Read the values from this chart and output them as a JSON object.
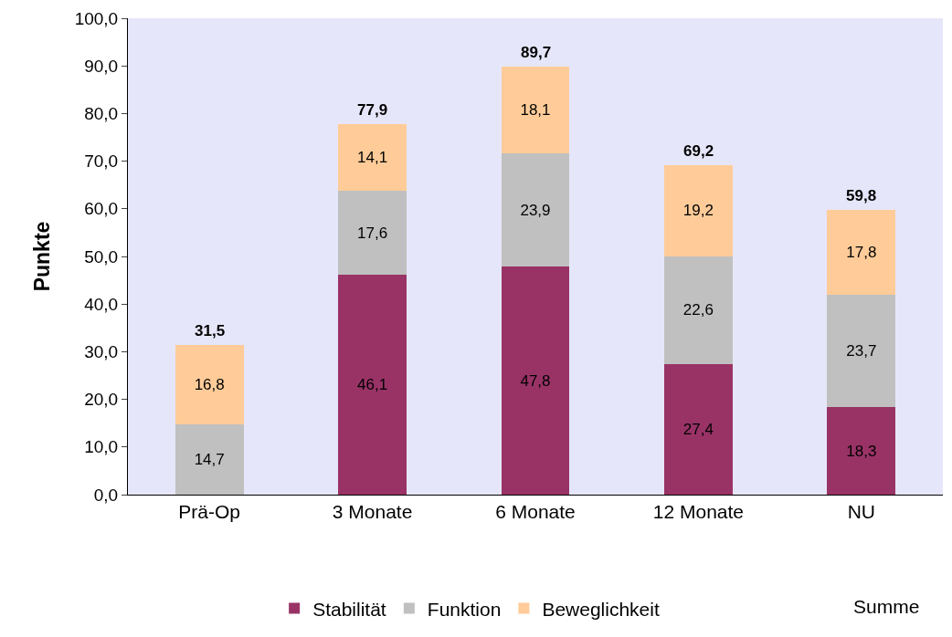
{
  "chart_data": {
    "type": "bar",
    "stacked": true,
    "ylabel": "Punkte",
    "categories": [
      "Prä-Op",
      "3 Monate",
      "6 Monate",
      "12 Monate",
      "NU"
    ],
    "series": [
      {
        "name": "Stabilität",
        "color": "#993366",
        "values": [
          null,
          46.1,
          47.8,
          27.4,
          18.3
        ],
        "value_labels": [
          null,
          "46,1",
          "47,8",
          "27,4",
          "18,3"
        ]
      },
      {
        "name": "Funktion",
        "color": "#c0c0c0",
        "values": [
          14.7,
          17.6,
          23.9,
          22.6,
          23.7
        ],
        "value_labels": [
          "14,7",
          "17,6",
          "23,9",
          "22,6",
          "23,7"
        ]
      },
      {
        "name": "Beweglichkeit",
        "color": "#ffcc99",
        "values": [
          16.8,
          14.1,
          18.1,
          19.2,
          17.8
        ],
        "value_labels": [
          "16,8",
          "14,1",
          "18,1",
          "19,2",
          "17,8"
        ]
      }
    ],
    "totals": [
      "31,5",
      "77,9",
      "89,7",
      "69,2",
      "59,8"
    ],
    "annotations": [
      "Summe"
    ],
    "ylim": [
      0,
      100
    ],
    "yticks": [
      {
        "value": 0,
        "label": "0,0"
      },
      {
        "value": 10,
        "label": "10,0"
      },
      {
        "value": 20,
        "label": "20,0"
      },
      {
        "value": 30,
        "label": "30,0"
      },
      {
        "value": 40,
        "label": "40,0"
      },
      {
        "value": 50,
        "label": "50,0"
      },
      {
        "value": 60,
        "label": "60,0"
      },
      {
        "value": 70,
        "label": "70,0"
      },
      {
        "value": 80,
        "label": "80,0"
      },
      {
        "value": 90,
        "label": "90,0"
      },
      {
        "value": 100,
        "label": "100,0"
      }
    ],
    "grid": false,
    "legend": "bottom"
  }
}
